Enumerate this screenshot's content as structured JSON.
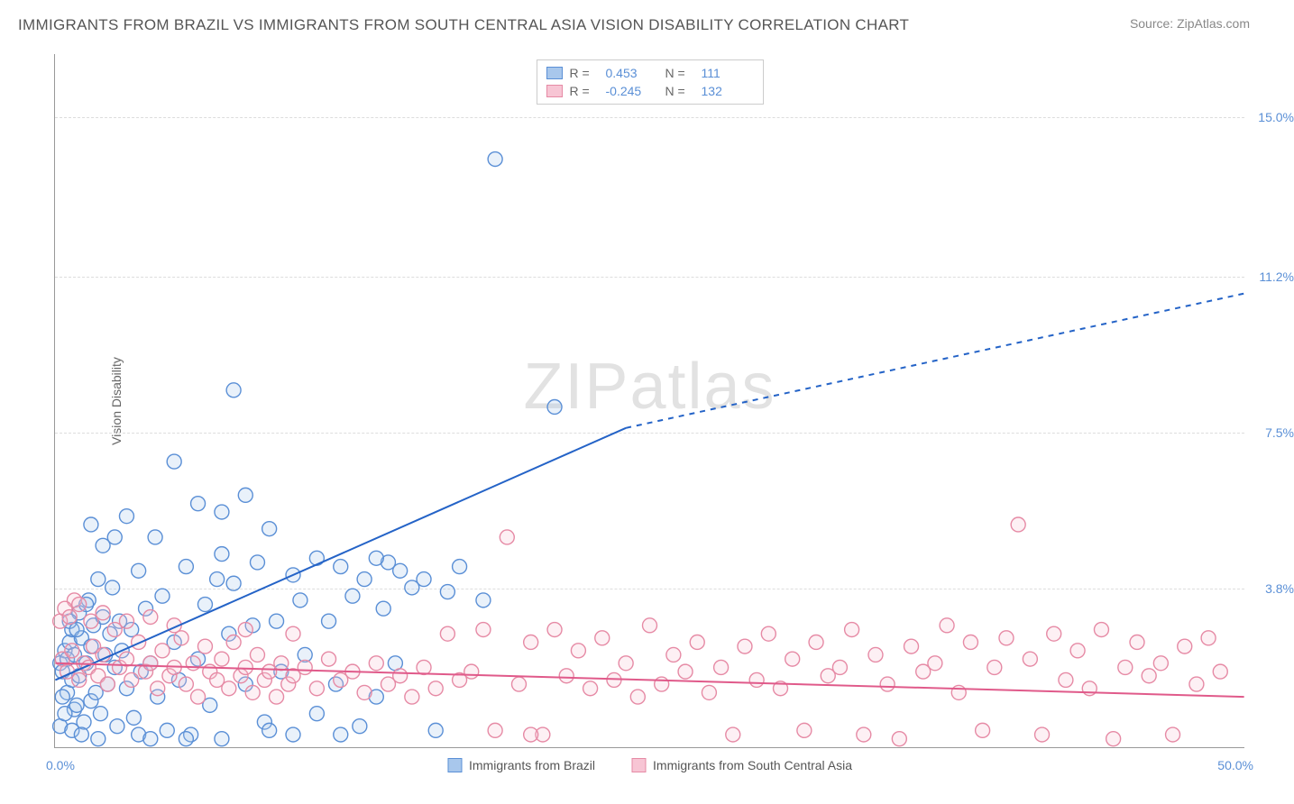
{
  "title": "IMMIGRANTS FROM BRAZIL VS IMMIGRANTS FROM SOUTH CENTRAL ASIA VISION DISABILITY CORRELATION CHART",
  "source": "Source: ZipAtlas.com",
  "ylabel": "Vision Disability",
  "watermark_a": "ZIP",
  "watermark_b": "atlas",
  "chart": {
    "type": "scatter",
    "xlim": [
      0,
      50
    ],
    "ylim": [
      0,
      16.5
    ],
    "x_ticks": [
      {
        "v": 0,
        "label": "0.0%"
      },
      {
        "v": 50,
        "label": "50.0%"
      }
    ],
    "y_ticks": [
      {
        "v": 3.8,
        "label": "3.8%"
      },
      {
        "v": 7.5,
        "label": "7.5%"
      },
      {
        "v": 11.2,
        "label": "11.2%"
      },
      {
        "v": 15.0,
        "label": "15.0%"
      }
    ],
    "grid_color": "#dddddd",
    "axis_color": "#999999",
    "background": "#ffffff",
    "marker_radius": 8,
    "marker_stroke_width": 1.4,
    "marker_fill_opacity": 0.25,
    "trend_line_width": 2,
    "series": [
      {
        "key": "brazil",
        "label": "Immigrants from Brazil",
        "color_stroke": "#5a8fd6",
        "color_fill": "#a8c7ec",
        "R": "0.453",
        "N": "111",
        "trend": {
          "x1": 0,
          "y1": 1.6,
          "x2": 24,
          "y2": 7.6,
          "dash_x2": 50,
          "dash_y2": 10.8,
          "color": "#2463c7"
        },
        "points": [
          [
            0.2,
            2.0
          ],
          [
            0.3,
            1.8
          ],
          [
            0.4,
            2.3
          ],
          [
            0.5,
            2.1
          ],
          [
            0.5,
            1.3
          ],
          [
            0.6,
            2.5
          ],
          [
            0.7,
            2.8
          ],
          [
            0.7,
            1.6
          ],
          [
            0.8,
            0.9
          ],
          [
            0.8,
            2.2
          ],
          [
            0.9,
            1.0
          ],
          [
            1.0,
            3.2
          ],
          [
            1.0,
            1.7
          ],
          [
            1.1,
            2.6
          ],
          [
            1.2,
            0.6
          ],
          [
            1.3,
            2.0
          ],
          [
            1.4,
            3.5
          ],
          [
            1.5,
            1.1
          ],
          [
            1.5,
            2.4
          ],
          [
            1.6,
            2.9
          ],
          [
            1.7,
            1.3
          ],
          [
            1.8,
            4.0
          ],
          [
            1.9,
            0.8
          ],
          [
            2.0,
            3.1
          ],
          [
            2.1,
            2.2
          ],
          [
            2.2,
            1.5
          ],
          [
            2.3,
            2.7
          ],
          [
            2.4,
            3.8
          ],
          [
            2.5,
            1.9
          ],
          [
            2.6,
            0.5
          ],
          [
            2.7,
            3.0
          ],
          [
            2.8,
            2.3
          ],
          [
            3.0,
            5.5
          ],
          [
            3.0,
            1.4
          ],
          [
            3.2,
            2.8
          ],
          [
            3.3,
            0.7
          ],
          [
            3.5,
            4.2
          ],
          [
            3.6,
            1.8
          ],
          [
            3.8,
            3.3
          ],
          [
            4.0,
            2.0
          ],
          [
            4.2,
            5.0
          ],
          [
            4.3,
            1.2
          ],
          [
            4.5,
            3.6
          ],
          [
            4.7,
            0.4
          ],
          [
            5.0,
            6.8
          ],
          [
            5.0,
            2.5
          ],
          [
            5.2,
            1.6
          ],
          [
            5.5,
            4.3
          ],
          [
            5.7,
            0.3
          ],
          [
            6.0,
            5.8
          ],
          [
            6.0,
            2.1
          ],
          [
            6.3,
            3.4
          ],
          [
            6.5,
            1.0
          ],
          [
            6.8,
            4.0
          ],
          [
            7.0,
            5.6
          ],
          [
            7.0,
            0.2
          ],
          [
            7.3,
            2.7
          ],
          [
            7.5,
            3.9
          ],
          [
            7.5,
            8.5
          ],
          [
            8.0,
            1.5
          ],
          [
            8.0,
            6.0
          ],
          [
            8.3,
            2.9
          ],
          [
            8.5,
            4.4
          ],
          [
            8.8,
            0.6
          ],
          [
            9.0,
            5.2
          ],
          [
            9.3,
            3.0
          ],
          [
            9.5,
            1.8
          ],
          [
            10.0,
            4.1
          ],
          [
            10.0,
            0.3
          ],
          [
            10.3,
            3.5
          ],
          [
            10.5,
            2.2
          ],
          [
            11.0,
            4.5
          ],
          [
            11.0,
            0.8
          ],
          [
            11.5,
            3.0
          ],
          [
            11.8,
            1.5
          ],
          [
            12.0,
            4.3
          ],
          [
            12.5,
            3.6
          ],
          [
            12.8,
            0.5
          ],
          [
            13.0,
            4.0
          ],
          [
            13.5,
            1.2
          ],
          [
            13.8,
            3.3
          ],
          [
            14.0,
            4.4
          ],
          [
            14.3,
            2.0
          ],
          [
            14.5,
            4.2
          ],
          [
            15.0,
            3.8
          ],
          [
            15.5,
            4.0
          ],
          [
            16.0,
            0.4
          ],
          [
            16.5,
            3.7
          ],
          [
            17.0,
            4.3
          ],
          [
            18.0,
            3.5
          ],
          [
            18.5,
            14.0
          ],
          [
            21.0,
            8.1
          ],
          [
            0.2,
            0.5
          ],
          [
            0.3,
            1.2
          ],
          [
            0.4,
            0.8
          ],
          [
            0.6,
            3.0
          ],
          [
            0.7,
            0.4
          ],
          [
            0.9,
            2.8
          ],
          [
            1.1,
            0.3
          ],
          [
            1.3,
            3.4
          ],
          [
            1.5,
            5.3
          ],
          [
            1.8,
            0.2
          ],
          [
            2.0,
            4.8
          ],
          [
            2.5,
            5.0
          ],
          [
            3.5,
            0.3
          ],
          [
            4.0,
            0.2
          ],
          [
            5.5,
            0.2
          ],
          [
            7.0,
            4.6
          ],
          [
            9.0,
            0.4
          ],
          [
            12.0,
            0.3
          ],
          [
            13.5,
            4.5
          ]
        ]
      },
      {
        "key": "scasia",
        "label": "Immigrants from South Central Asia",
        "color_stroke": "#e68aa5",
        "color_fill": "#f7c5d4",
        "R": "-0.245",
        "N": "132",
        "trend": {
          "x1": 0,
          "y1": 2.0,
          "x2": 50,
          "y2": 1.2,
          "color": "#e05a8a"
        },
        "points": [
          [
            0.3,
            2.1
          ],
          [
            0.5,
            1.8
          ],
          [
            0.7,
            2.3
          ],
          [
            0.8,
            3.5
          ],
          [
            1.0,
            1.6
          ],
          [
            1.2,
            2.0
          ],
          [
            1.4,
            1.9
          ],
          [
            1.6,
            2.4
          ],
          [
            1.8,
            1.7
          ],
          [
            2.0,
            2.2
          ],
          [
            2.2,
            1.5
          ],
          [
            2.5,
            2.8
          ],
          [
            2.7,
            1.9
          ],
          [
            3.0,
            2.1
          ],
          [
            3.2,
            1.6
          ],
          [
            3.5,
            2.5
          ],
          [
            3.8,
            1.8
          ],
          [
            4.0,
            2.0
          ],
          [
            4.3,
            1.4
          ],
          [
            4.5,
            2.3
          ],
          [
            4.8,
            1.7
          ],
          [
            5.0,
            1.9
          ],
          [
            5.3,
            2.6
          ],
          [
            5.5,
            1.5
          ],
          [
            5.8,
            2.0
          ],
          [
            6.0,
            1.2
          ],
          [
            6.3,
            2.4
          ],
          [
            6.5,
            1.8
          ],
          [
            6.8,
            1.6
          ],
          [
            7.0,
            2.1
          ],
          [
            7.3,
            1.4
          ],
          [
            7.5,
            2.5
          ],
          [
            7.8,
            1.7
          ],
          [
            8.0,
            1.9
          ],
          [
            8.3,
            1.3
          ],
          [
            8.5,
            2.2
          ],
          [
            8.8,
            1.6
          ],
          [
            9.0,
            1.8
          ],
          [
            9.3,
            1.2
          ],
          [
            9.5,
            2.0
          ],
          [
            9.8,
            1.5
          ],
          [
            10.0,
            1.7
          ],
          [
            10.5,
            1.9
          ],
          [
            11.0,
            1.4
          ],
          [
            11.5,
            2.1
          ],
          [
            12.0,
            1.6
          ],
          [
            12.5,
            1.8
          ],
          [
            13.0,
            1.3
          ],
          [
            13.5,
            2.0
          ],
          [
            14.0,
            1.5
          ],
          [
            14.5,
            1.7
          ],
          [
            15.0,
            1.2
          ],
          [
            15.5,
            1.9
          ],
          [
            16.0,
            1.4
          ],
          [
            16.5,
            2.7
          ],
          [
            17.0,
            1.6
          ],
          [
            17.5,
            1.8
          ],
          [
            18.0,
            2.8
          ],
          [
            18.5,
            0.4
          ],
          [
            19.0,
            5.0
          ],
          [
            19.5,
            1.5
          ],
          [
            20.0,
            2.5
          ],
          [
            20.5,
            0.3
          ],
          [
            21.0,
            2.8
          ],
          [
            21.5,
            1.7
          ],
          [
            22.0,
            2.3
          ],
          [
            22.5,
            1.4
          ],
          [
            23.0,
            2.6
          ],
          [
            23.5,
            1.6
          ],
          [
            24.0,
            2.0
          ],
          [
            24.5,
            1.2
          ],
          [
            25.0,
            2.9
          ],
          [
            25.5,
            1.5
          ],
          [
            26.0,
            2.2
          ],
          [
            26.5,
            1.8
          ],
          [
            27.0,
            2.5
          ],
          [
            27.5,
            1.3
          ],
          [
            28.0,
            1.9
          ],
          [
            28.5,
            0.3
          ],
          [
            29.0,
            2.4
          ],
          [
            29.5,
            1.6
          ],
          [
            30.0,
            2.7
          ],
          [
            30.5,
            1.4
          ],
          [
            31.0,
            2.1
          ],
          [
            31.5,
            0.4
          ],
          [
            32.0,
            2.5
          ],
          [
            32.5,
            1.7
          ],
          [
            33.0,
            1.9
          ],
          [
            33.5,
            2.8
          ],
          [
            34.0,
            0.3
          ],
          [
            34.5,
            2.2
          ],
          [
            35.0,
            1.5
          ],
          [
            35.5,
            0.2
          ],
          [
            36.0,
            2.4
          ],
          [
            36.5,
            1.8
          ],
          [
            37.0,
            2.0
          ],
          [
            37.5,
            2.9
          ],
          [
            38.0,
            1.3
          ],
          [
            38.5,
            2.5
          ],
          [
            39.0,
            0.4
          ],
          [
            39.5,
            1.9
          ],
          [
            40.0,
            2.6
          ],
          [
            40.5,
            5.3
          ],
          [
            41.0,
            2.1
          ],
          [
            41.5,
            0.3
          ],
          [
            42.0,
            2.7
          ],
          [
            42.5,
            1.6
          ],
          [
            43.0,
            2.3
          ],
          [
            43.5,
            1.4
          ],
          [
            44.0,
            2.8
          ],
          [
            44.5,
            0.2
          ],
          [
            45.0,
            1.9
          ],
          [
            45.5,
            2.5
          ],
          [
            46.0,
            1.7
          ],
          [
            46.5,
            2.0
          ],
          [
            47.0,
            0.3
          ],
          [
            47.5,
            2.4
          ],
          [
            48.0,
            1.5
          ],
          [
            48.5,
            2.6
          ],
          [
            49.0,
            1.8
          ],
          [
            0.2,
            3.0
          ],
          [
            0.4,
            3.3
          ],
          [
            0.6,
            3.1
          ],
          [
            1.0,
            3.4
          ],
          [
            1.5,
            3.0
          ],
          [
            2.0,
            3.2
          ],
          [
            3.0,
            3.0
          ],
          [
            4.0,
            3.1
          ],
          [
            5.0,
            2.9
          ],
          [
            8.0,
            2.8
          ],
          [
            10.0,
            2.7
          ],
          [
            20.0,
            0.3
          ]
        ]
      }
    ]
  },
  "top_legend": {
    "r_label": "R  =",
    "n_label": "N  ="
  }
}
